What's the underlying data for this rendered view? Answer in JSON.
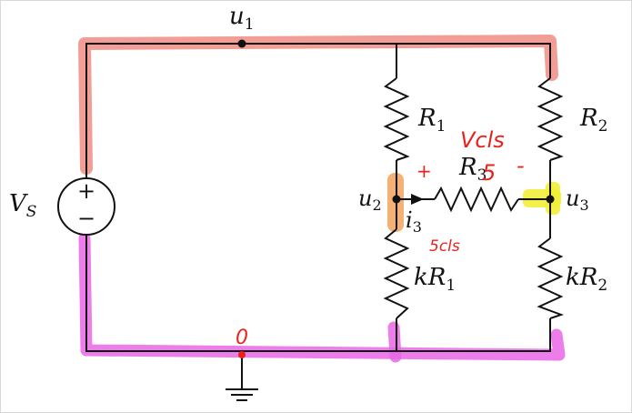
{
  "labels": {
    "node_top": "u",
    "node_top_sub": "1",
    "source": "V",
    "source_sub": "S",
    "source_plus": "+",
    "source_minus": "−",
    "r1": "R",
    "r1_sub": "1",
    "r2": "R",
    "r2_sub": "2",
    "r3": "R",
    "r3_sub": "3",
    "node_left_mid": "u",
    "node_left_mid_sub": "2",
    "node_right_mid": "u",
    "node_right_mid_sub": "3",
    "current": "i",
    "current_sub": "3",
    "kr1_k": "k",
    "kr1_r": "R",
    "kr1_sub": "1",
    "kr2_k": "k",
    "kr2_r": "R",
    "kr2_sub": "2"
  },
  "annotations": {
    "volts_label": "Vcls",
    "five_over_r3": "5",
    "plus_mark": "+",
    "minus_mark": "-",
    "current_value": "5cls",
    "ground_node": "0"
  },
  "colors": {
    "wire": "#111111",
    "top_highlight": "#f08c84",
    "bottom_highlight": "#e966e6",
    "u2_highlight": "#f3a25a",
    "u3_highlight": "#f2ee3a",
    "ink_red": "#e8231e"
  }
}
